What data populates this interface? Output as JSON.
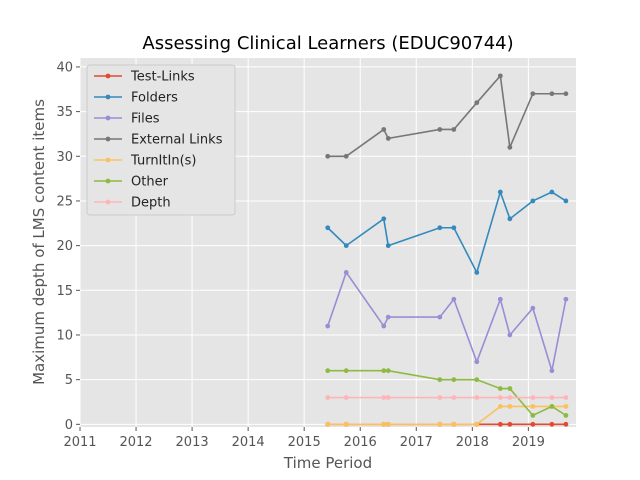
{
  "chart_data": {
    "type": "line",
    "title": "Assessing Clinical Learners (EDUC90744)",
    "xlabel": "Time Period",
    "ylabel": "Maximum depth of LMS content items",
    "xlim": [
      2011,
      2019.85
    ],
    "ylim": [
      -0.3,
      41
    ],
    "xticks": [
      2011,
      2012,
      2013,
      2014,
      2015,
      2016,
      2017,
      2018,
      2019
    ],
    "yticks": [
      0,
      5,
      10,
      15,
      20,
      25,
      30,
      35,
      40
    ],
    "grid": true,
    "legend_position": "top-left",
    "x": [
      2015.42,
      2015.75,
      2016.42,
      2016.5,
      2017.42,
      2017.67,
      2018.08,
      2018.5,
      2018.67,
      2019.08,
      2019.42,
      2019.67
    ],
    "series": [
      {
        "name": "Test-Links",
        "color": "#E24A33",
        "values": [
          0,
          0,
          0,
          0,
          0,
          0,
          0,
          0,
          0,
          0,
          0,
          0
        ]
      },
      {
        "name": "Folders",
        "color": "#348ABD",
        "values": [
          22,
          20,
          23,
          20,
          22,
          22,
          17,
          26,
          23,
          25,
          26,
          25
        ]
      },
      {
        "name": "Files",
        "color": "#988ED5",
        "values": [
          11,
          17,
          11,
          12,
          12,
          14,
          7,
          14,
          10,
          13,
          6,
          14
        ]
      },
      {
        "name": "External Links",
        "color": "#777777",
        "values": [
          30,
          30,
          33,
          32,
          33,
          33,
          36,
          39,
          31,
          37,
          37,
          37
        ]
      },
      {
        "name": "TurnItIn(s)",
        "color": "#FBC15E",
        "values": [
          0,
          0,
          0,
          0,
          0,
          0,
          0,
          2,
          2,
          2,
          2,
          2
        ]
      },
      {
        "name": "Other",
        "color": "#8EBA42",
        "values": [
          6,
          6,
          6,
          6,
          5,
          5,
          5,
          4,
          4,
          1,
          2,
          1
        ]
      },
      {
        "name": "Depth",
        "color": "#FFB5B8",
        "values": [
          3,
          3,
          3,
          3,
          3,
          3,
          3,
          3,
          3,
          3,
          3,
          3
        ]
      }
    ]
  }
}
